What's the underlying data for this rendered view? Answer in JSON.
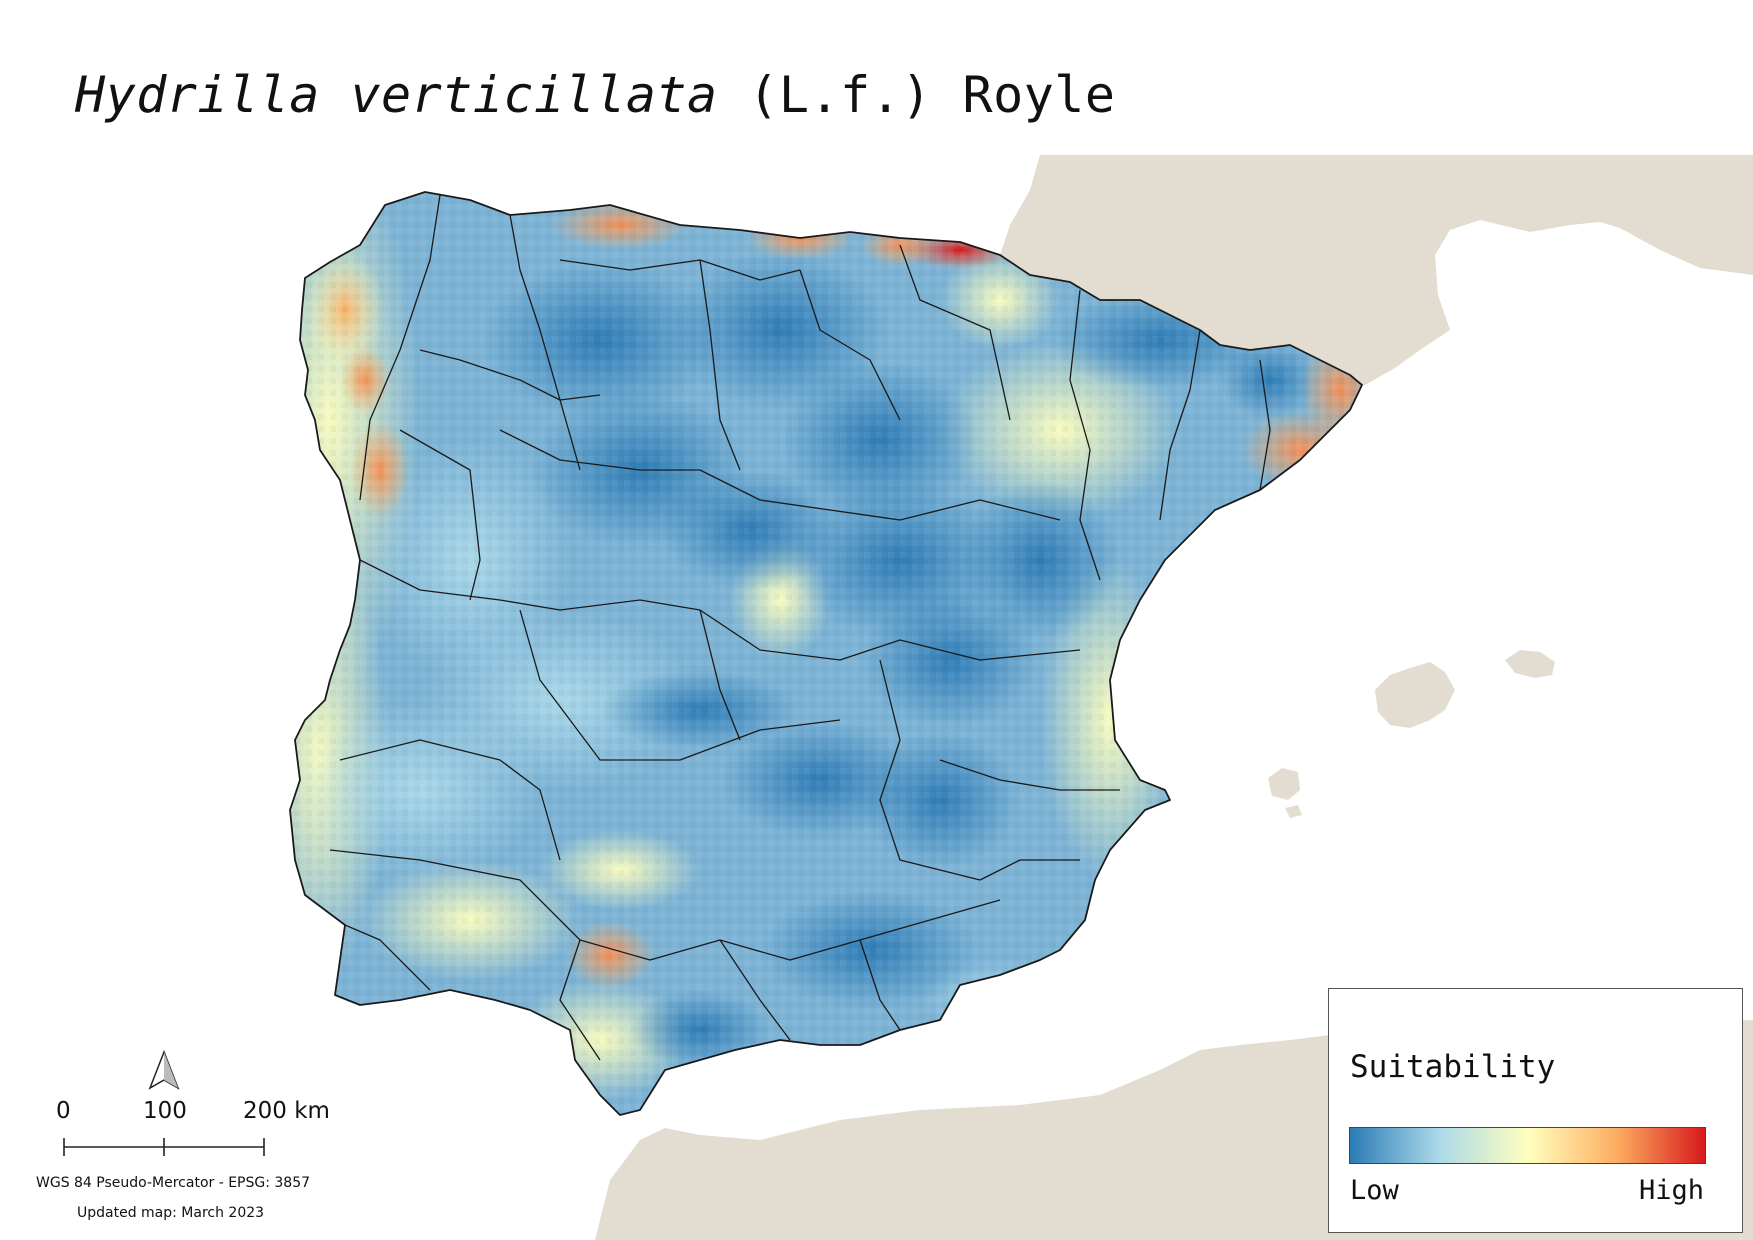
{
  "title": {
    "species": "Hydrilla verticillata",
    "authority": "(L.f.) Royle"
  },
  "legend": {
    "title": "Suitability",
    "low_label": "Low",
    "high_label": "High",
    "colors": [
      "#2c7bb6",
      "#abd9e9",
      "#ffffbf",
      "#fdae61",
      "#d7191c"
    ]
  },
  "scale_bar": {
    "labels": [
      "0",
      "100",
      "200 km"
    ]
  },
  "credits": {
    "crs": "WGS 84 Pseudo-Mercator  - EPSG: 3857",
    "updated": "Updated map: March 2023"
  },
  "map": {
    "north_icon": "north-arrow-icon",
    "land_color": "#e2ddd0",
    "border_color": "#1a1a1a",
    "sea_color": "#ffffff"
  }
}
